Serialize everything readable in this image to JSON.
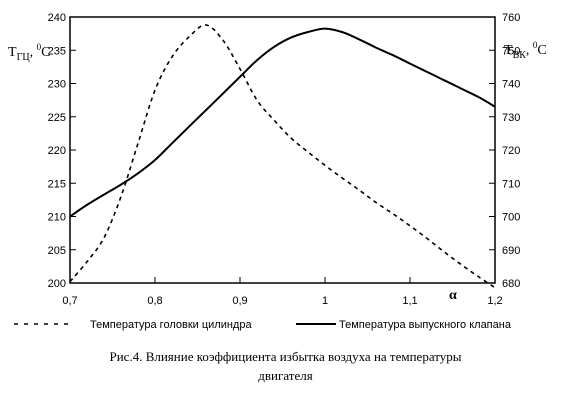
{
  "chart_data": {
    "type": "line",
    "x_ticks": [
      "0,7",
      "0,8",
      "0,9",
      "1",
      "1,1",
      "1,2"
    ],
    "xlim": [
      0.7,
      1.2
    ],
    "xlabel": "α",
    "left_axis": {
      "label_main": "T",
      "label_sub": "ГЦ",
      "label_sep": ", ",
      "label_sup": "0",
      "label_unit": "C",
      "ticks": [
        "200",
        "205",
        "210",
        "215",
        "220",
        "225",
        "230",
        "235",
        "240"
      ],
      "ylim": [
        200,
        240
      ]
    },
    "right_axis": {
      "label_main": "T",
      "label_sub": "ВК",
      "label_sep": ", ",
      "label_sup": "0",
      "label_unit": "C",
      "ticks": [
        "680",
        "690",
        "700",
        "710",
        "720",
        "730",
        "740",
        "750",
        "760"
      ],
      "ylim": [
        680,
        760
      ]
    },
    "series": [
      {
        "name": "Температура головки цилиндра",
        "axis": "left",
        "style": "dashed",
        "x": [
          0.7,
          0.72,
          0.74,
          0.76,
          0.78,
          0.8,
          0.82,
          0.84,
          0.86,
          0.88,
          0.9,
          0.92,
          0.94,
          0.96,
          0.98,
          1.0,
          1.02,
          1.04,
          1.06,
          1.08,
          1.1,
          1.12,
          1.14,
          1.16,
          1.18,
          1.2
        ],
        "y": [
          200.2,
          203.2,
          206.8,
          213.0,
          221.0,
          229.0,
          234.0,
          237.0,
          238.8,
          236.5,
          232.2,
          227.5,
          224.5,
          221.8,
          219.7,
          217.7,
          215.8,
          214.0,
          212.1,
          210.4,
          208.6,
          206.7,
          204.7,
          202.8,
          201.0,
          199.3
        ]
      },
      {
        "name": "Температура выпускного клапана",
        "axis": "right",
        "style": "solid",
        "x": [
          0.7,
          0.72,
          0.74,
          0.76,
          0.78,
          0.8,
          0.82,
          0.84,
          0.86,
          0.88,
          0.9,
          0.92,
          0.94,
          0.96,
          0.98,
          1.0,
          1.02,
          1.04,
          1.06,
          1.08,
          1.1,
          1.12,
          1.14,
          1.16,
          1.18,
          1.2
        ],
        "y": [
          700.0,
          703.5,
          706.6,
          709.6,
          713.0,
          717.0,
          722.0,
          727.0,
          732.0,
          737.0,
          742.0,
          747.0,
          751.0,
          753.8,
          755.5,
          756.5,
          755.5,
          753.3,
          750.8,
          748.5,
          746.0,
          743.5,
          741.0,
          738.5,
          736.0,
          733.0
        ]
      }
    ],
    "legend_position": "bottom"
  },
  "caption": {
    "line1": "Рис.4. Влияние коэффициента избытка воздуха на температуры",
    "line2": "двигателя"
  }
}
